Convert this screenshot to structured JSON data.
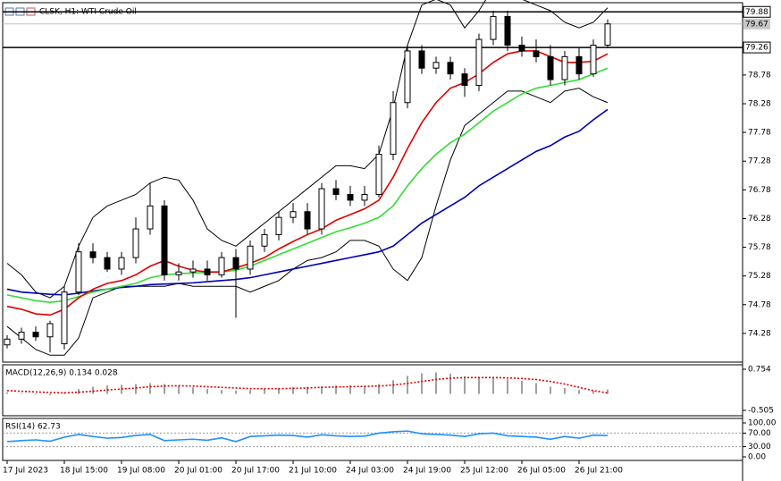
{
  "chart_data": [
    {
      "type": "candlestick",
      "title": "CLSK, H1: WTI Crude Oil",
      "categories": [
        "17 Jul 2023",
        null,
        null,
        null,
        "18 Jul 15:00",
        null,
        null,
        null,
        "19 Jul 08:00",
        null,
        null,
        null,
        "20 Jul 01:00",
        null,
        null,
        null,
        "20 Jul 17:00",
        null,
        null,
        null,
        "21 Jul 10:00",
        null,
        null,
        null,
        "24 Jul 03:00",
        null,
        null,
        null,
        "24 Jul 19:00",
        null,
        null,
        null,
        "25 Jul 12:00",
        null,
        null,
        null,
        "26 Jul 05:00",
        null,
        null,
        null,
        "26 Jul 21:00",
        null,
        null
      ],
      "open": [
        74.08,
        74.18,
        74.3,
        74.22,
        74.1,
        75.0,
        75.7,
        75.6,
        75.4,
        75.6,
        76.1,
        76.5,
        75.3,
        75.35,
        75.4,
        75.3,
        75.6,
        75.4,
        75.8,
        76.0,
        76.3,
        76.4,
        76.1,
        76.8,
        76.7,
        76.6,
        76.7,
        77.4,
        78.3,
        79.2,
        78.9,
        79.0,
        78.8,
        78.6,
        79.4,
        79.8,
        79.3,
        79.2,
        79.1,
        78.7,
        79.1,
        78.8,
        79.3
      ],
      "high": [
        74.25,
        74.38,
        74.4,
        74.5,
        75.1,
        75.85,
        75.85,
        75.7,
        75.7,
        76.3,
        76.9,
        76.6,
        75.5,
        75.55,
        75.55,
        75.7,
        75.75,
        75.9,
        76.1,
        76.4,
        76.55,
        76.55,
        76.9,
        76.95,
        76.85,
        76.85,
        77.55,
        78.5,
        79.3,
        79.3,
        79.1,
        79.1,
        78.9,
        79.5,
        79.9,
        79.9,
        79.45,
        79.4,
        79.3,
        79.2,
        79.25,
        79.4,
        79.75
      ],
      "low": [
        74.02,
        74.1,
        74.15,
        73.95,
        74.0,
        74.95,
        75.5,
        75.35,
        75.3,
        75.5,
        76.0,
        75.2,
        75.2,
        75.25,
        75.2,
        75.25,
        74.55,
        75.3,
        75.7,
        75.9,
        76.2,
        76.0,
        76.0,
        76.6,
        76.5,
        76.5,
        76.65,
        77.3,
        78.2,
        78.8,
        78.8,
        78.7,
        78.4,
        78.5,
        79.3,
        79.2,
        79.1,
        79.0,
        78.6,
        78.6,
        78.7,
        78.75,
        79.25
      ],
      "close": [
        74.18,
        74.3,
        74.22,
        74.45,
        75.0,
        75.7,
        75.6,
        75.4,
        75.6,
        76.1,
        76.5,
        75.3,
        75.35,
        75.4,
        75.3,
        75.6,
        75.4,
        75.8,
        76.0,
        76.3,
        76.4,
        76.1,
        76.8,
        76.7,
        76.6,
        76.7,
        77.4,
        78.3,
        79.2,
        78.9,
        79.0,
        78.8,
        78.6,
        79.4,
        79.8,
        79.3,
        79.2,
        79.1,
        78.7,
        79.1,
        78.8,
        79.3,
        79.67
      ],
      "series": [
        {
          "color": "#000000",
          "values": [
            75.5,
            75.3,
            75.0,
            74.9,
            75.1,
            75.8,
            76.3,
            76.5,
            76.6,
            76.7,
            76.9,
            77.0,
            76.95,
            76.6,
            76.1,
            75.9,
            75.8,
            76.0,
            76.2,
            76.4,
            76.6,
            76.8,
            77.0,
            77.2,
            77.2,
            77.15,
            77.4,
            78.2,
            79.3,
            80.0,
            80.1,
            80.0,
            79.6,
            79.9,
            80.3,
            80.3,
            80.1,
            80.0,
            79.9,
            79.7,
            79.6,
            79.7,
            79.95
          ]
        },
        {
          "color": "#000000",
          "values": [
            74.4,
            74.2,
            74.0,
            73.9,
            73.9,
            74.2,
            74.9,
            75.0,
            75.1,
            75.1,
            75.1,
            75.1,
            75.15,
            75.1,
            75.1,
            75.1,
            75.1,
            75.0,
            75.1,
            75.2,
            75.4,
            75.55,
            75.6,
            75.7,
            75.9,
            75.9,
            75.8,
            75.4,
            75.2,
            75.6,
            76.5,
            77.3,
            77.9,
            78.1,
            78.3,
            78.5,
            78.5,
            78.4,
            78.3,
            78.5,
            78.55,
            78.4,
            78.3
          ]
        },
        {
          "color": "#0000b4",
          "values": [
            75.05,
            75.0,
            74.98,
            74.96,
            74.95,
            74.98,
            75.02,
            75.05,
            75.08,
            75.1,
            75.13,
            75.14,
            75.15,
            75.16,
            75.18,
            75.2,
            75.22,
            75.25,
            75.3,
            75.35,
            75.4,
            75.45,
            75.5,
            75.55,
            75.6,
            75.65,
            75.7,
            75.8,
            76.0,
            76.2,
            76.35,
            76.5,
            76.65,
            76.85,
            77.0,
            77.15,
            77.3,
            77.45,
            77.55,
            77.7,
            77.8,
            78.0,
            78.18
          ]
        },
        {
          "color": "#33dd33",
          "values": [
            74.95,
            74.9,
            74.85,
            74.82,
            74.85,
            74.92,
            75.0,
            75.05,
            75.1,
            75.15,
            75.25,
            75.3,
            75.32,
            75.33,
            75.34,
            75.35,
            75.38,
            75.45,
            75.55,
            75.65,
            75.75,
            75.85,
            75.95,
            76.05,
            76.12,
            76.2,
            76.3,
            76.5,
            76.85,
            77.15,
            77.4,
            77.6,
            77.75,
            77.95,
            78.15,
            78.3,
            78.45,
            78.55,
            78.6,
            78.65,
            78.7,
            78.8,
            78.9
          ]
        },
        {
          "color": "#e00000",
          "values": [
            74.75,
            74.7,
            74.62,
            74.6,
            74.7,
            74.9,
            75.05,
            75.15,
            75.2,
            75.3,
            75.45,
            75.55,
            75.45,
            75.38,
            75.35,
            75.35,
            75.42,
            75.5,
            75.6,
            75.75,
            75.88,
            76.0,
            76.1,
            76.25,
            76.35,
            76.45,
            76.6,
            77.0,
            77.5,
            77.95,
            78.3,
            78.55,
            78.65,
            78.8,
            79.0,
            79.15,
            79.2,
            79.2,
            79.1,
            79.0,
            79.0,
            79.02,
            79.15
          ]
        }
      ],
      "ylim": [
        73.78,
        80.04
      ],
      "yticks": [
        74.28,
        74.78,
        75.28,
        75.78,
        76.28,
        76.78,
        77.28,
        77.78,
        78.28,
        78.78
      ],
      "hlines": [
        79.26,
        79.88
      ],
      "last_price": 79.67
    },
    {
      "type": "macd",
      "title": "MACD(12,26,9) 0.134 0.028",
      "values": [
        0.05,
        0.02,
        -0.02,
        -0.04,
        0.05,
        0.15,
        0.22,
        0.26,
        0.28,
        0.3,
        0.33,
        0.3,
        0.25,
        0.2,
        0.15,
        0.12,
        0.1,
        0.12,
        0.15,
        0.18,
        0.2,
        0.22,
        0.24,
        0.26,
        0.26,
        0.25,
        0.3,
        0.42,
        0.55,
        0.63,
        0.66,
        0.62,
        0.54,
        0.5,
        0.48,
        0.45,
        0.4,
        0.33,
        0.22,
        0.18,
        0.12,
        0.1,
        0.134
      ],
      "signal": {
        "color": "#e00000",
        "values": [
          0.1,
          0.08,
          0.06,
          0.04,
          0.03,
          0.05,
          0.08,
          0.12,
          0.15,
          0.18,
          0.22,
          0.24,
          0.25,
          0.24,
          0.22,
          0.2,
          0.18,
          0.16,
          0.16,
          0.16,
          0.17,
          0.18,
          0.2,
          0.21,
          0.22,
          0.23,
          0.24,
          0.27,
          0.32,
          0.38,
          0.44,
          0.48,
          0.5,
          0.5,
          0.5,
          0.49,
          0.47,
          0.44,
          0.38,
          0.3,
          0.2,
          0.1,
          0.028
        ]
      },
      "color": "#a0a0a0",
      "ylim": [
        -0.669,
        0.891
      ],
      "yticks": [
        0.754,
        -0.505
      ]
    },
    {
      "type": "line",
      "title": "RSI(14) 62.73",
      "values": [
        45,
        48,
        50,
        46,
        58,
        66,
        60,
        55,
        57,
        63,
        66,
        48,
        50,
        52,
        49,
        56,
        45,
        60,
        62,
        64,
        63,
        58,
        65,
        62,
        60,
        61,
        70,
        74,
        76,
        68,
        66,
        64,
        60,
        68,
        70,
        62,
        60,
        58,
        52,
        60,
        55,
        64,
        62.73
      ],
      "color": "#1e90ff",
      "ylim": [
        -10.5,
        113.2
      ],
      "yticks": [
        {
          "value": 100,
          "label": "100.00"
        },
        {
          "value": 70,
          "label": "70.00"
        },
        {
          "value": 30,
          "label": "30.00"
        },
        {
          "value": 0,
          "label": "0.00"
        }
      ],
      "levels": [
        70,
        30
      ]
    }
  ]
}
